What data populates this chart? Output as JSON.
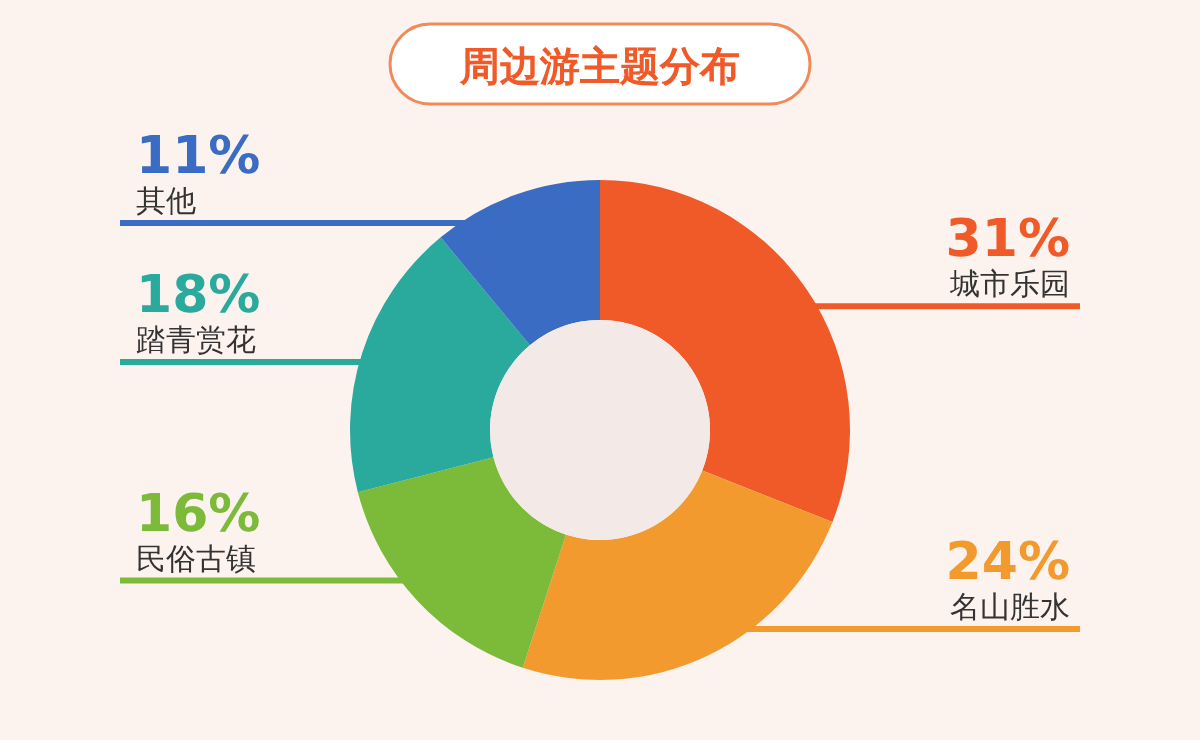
{
  "chart_data": {
    "type": "donut",
    "title": "周边游主题分布",
    "categories": [
      "城市乐园",
      "名山胜水",
      "民俗古镇",
      "踏青赏花",
      "其他"
    ],
    "values": [
      31,
      24,
      16,
      18,
      11
    ],
    "colors": [
      "#f05a28",
      "#f39a2f",
      "#7cba3a",
      "#2aaa9c",
      "#3a6cc4"
    ],
    "value_labels": [
      "31%",
      "24%",
      "16%",
      "18%",
      "11%"
    ]
  }
}
